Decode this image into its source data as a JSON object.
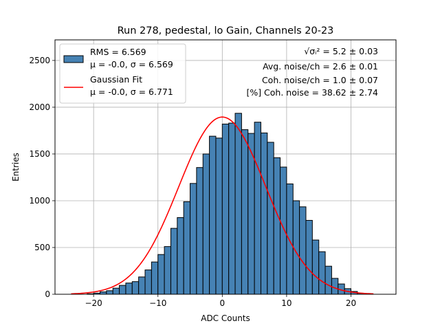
{
  "chart_data": {
    "type": "bar",
    "title": "Run 278, pedestal, lo Gain, Channels 20-23",
    "xlabel": "ADC Counts",
    "ylabel": "Entries",
    "xlim": [
      -26,
      27
    ],
    "ylim": [
      0,
      2720
    ],
    "xticks": [
      -20,
      -10,
      0,
      10,
      20
    ],
    "xtick_labels": [
      "−20",
      "−10",
      "0",
      "10",
      "20"
    ],
    "yticks": [
      0,
      500,
      1000,
      1500,
      2000,
      2500
    ],
    "ytick_labels": [
      "0",
      "500",
      "1000",
      "1500",
      "2000",
      "2500"
    ],
    "grid": true,
    "legend_position": "top-left",
    "histogram": {
      "name": "RMS = 6.569",
      "name_line2": "μ = -0.0, σ = 6.569",
      "color": "#4682b4",
      "edge_color": "#000000",
      "bin_edges_start": -21,
      "bin_width": 1,
      "values": [
        5,
        12,
        25,
        38,
        65,
        95,
        120,
        135,
        185,
        260,
        345,
        425,
        510,
        705,
        820,
        990,
        1185,
        1355,
        1500,
        1690,
        1670,
        1820,
        1830,
        1935,
        1760,
        1720,
        1840,
        1725,
        1625,
        1460,
        1360,
        1180,
        1000,
        935,
        790,
        580,
        455,
        300,
        170,
        110,
        60,
        30,
        10
      ]
    },
    "fit": {
      "name": "Gaussian Fit",
      "name_line2": "μ = -0.0, σ = 6.771",
      "color": "#ff0000",
      "mu": 0.0,
      "sigma": 6.771,
      "amplitude": 1895,
      "x_range": [
        -23.5,
        23.5
      ]
    },
    "annotations": [
      {
        "id": "sigma",
        "prefix": "",
        "formula": "√σᵢ²",
        "text": " = 5.2 ± 0.03"
      },
      {
        "id": "avg",
        "text": "Avg. noise/ch = 2.6 ± 0.01"
      },
      {
        "id": "coh",
        "text": "Coh. noise/ch = 1.0 ± 0.07"
      },
      {
        "id": "pct",
        "text": "[%] Coh. noise = 38.62 ± 2.74"
      }
    ]
  }
}
